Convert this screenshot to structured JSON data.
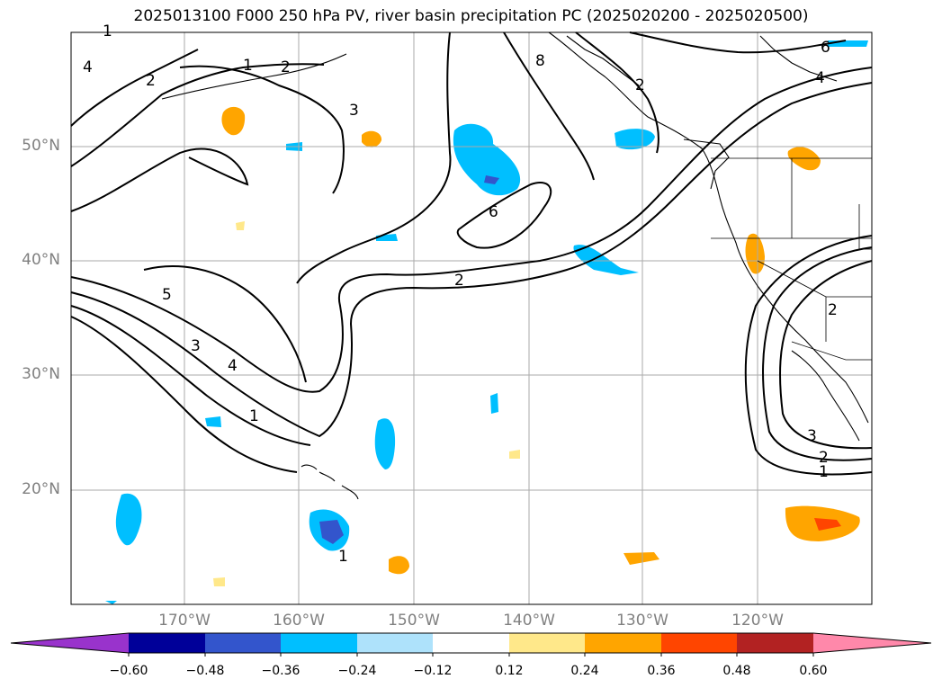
{
  "title": "2025013100 F000 250 hPa PV, river basin precipitation PC (2025020200 - 2025020500)",
  "lat_labels": [
    "50°N",
    "40°N",
    "30°N",
    "20°N"
  ],
  "lon_labels": [
    "170°W",
    "160°W",
    "150°W",
    "140°W",
    "130°W",
    "120°W"
  ],
  "colorbar": {
    "tick_labels": [
      "−0.60",
      "−0.48",
      "−0.36",
      "−0.24",
      "−0.12",
      "0.12",
      "0.24",
      "0.36",
      "0.48",
      "0.60"
    ],
    "colors": [
      "#9933cc",
      "#000099",
      "#3355cc",
      "#00bfff",
      "#aee2fb",
      "#ffffff",
      "#ffe88a",
      "#ffa500",
      "#ff4500",
      "#b22222",
      "#ff88aa"
    ]
  },
  "contour_labels": [
    "1",
    "2",
    "4",
    "2",
    "1",
    "3",
    "2",
    "8",
    "4",
    "6",
    "2",
    "6",
    "5",
    "3",
    "4",
    "1",
    "2",
    "3",
    "2",
    "1",
    "1"
  ],
  "map": {
    "extent_lon": [
      -180,
      -110
    ],
    "extent_lat": [
      10,
      60
    ],
    "gridlines": true,
    "pv_contour_levels": [
      1,
      2,
      3,
      4,
      5,
      6,
      8
    ]
  }
}
